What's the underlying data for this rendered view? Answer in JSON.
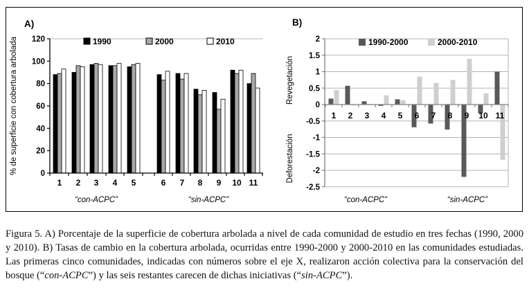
{
  "figure": {
    "caption_segments": [
      {
        "text": "Figura 5. A) Porcentaje de la superficie de cobertura arbolada a nivel de cada comunidad de estudio en tres fechas (1990, 2000 y 2010). B) Tasas de cambio en la cobertura arbolada, ocurridas entre 1990-2000 y 2000-2010 en las comunidades estudiadas. Las primeras cinco comunidades, indicadas con números sobre el eje X, realizaron acción colectiva para la conservación del bosque (“",
        "italic": false
      },
      {
        "text": "con-ACPC",
        "italic": true
      },
      {
        "text": "”) y las seis restantes carecen de dichas iniciativas (“",
        "italic": false
      },
      {
        "text": "sin-ACPC",
        "italic": true
      },
      {
        "text": "”).",
        "italic": false
      }
    ]
  },
  "chart_data": [
    {
      "type": "bar",
      "panel_label": "A)",
      "ylabel": "% de superficie con cobertura arbolada",
      "ylim": [
        0,
        120
      ],
      "yticks": [
        "120",
        "100",
        "80",
        "60",
        "40",
        "20",
        "0"
      ],
      "ytick_values": [
        120,
        100,
        80,
        60,
        40,
        20,
        0
      ],
      "grid": false,
      "legend_position": "top",
      "categories": [
        "1",
        "2",
        "3",
        "4",
        "5",
        "6",
        "7",
        "8",
        "9",
        "10",
        "11"
      ],
      "group_labels": [
        {
          "label": "“con-ACPC”",
          "categories": "1-5"
        },
        {
          "label": "“sin-ACPC”",
          "categories": "6-11"
        }
      ],
      "series": [
        {
          "name": "1990",
          "color": "#000000",
          "values": [
            88,
            90,
            97,
            96,
            95,
            88,
            89,
            75,
            72,
            92,
            80
          ]
        },
        {
          "name": "2000",
          "color": "#a8a8a8",
          "values": [
            89,
            96,
            98,
            96,
            97,
            83,
            84,
            70,
            57,
            89,
            89
          ]
        },
        {
          "name": "2010",
          "color": "#ffffff",
          "values": [
            93,
            95,
            97,
            98,
            98,
            91,
            89,
            74,
            66,
            92,
            76
          ]
        }
      ]
    },
    {
      "type": "bar",
      "panel_label": "B)",
      "ylabel_positive": "Revegetación",
      "ylabel_negative": "Deforestación",
      "ylim": [
        -2.5,
        2
      ],
      "yticks": [
        "2",
        "1.5",
        "1",
        "0.5",
        "0",
        "-0.5",
        "-1",
        "-1.5",
        "-2",
        "-2.5"
      ],
      "ytick_values": [
        2,
        1.5,
        1,
        0.5,
        0,
        -0.5,
        -1,
        -1.5,
        -2,
        -2.5
      ],
      "grid": true,
      "legend_position": "top",
      "categories": [
        "1",
        "2",
        "3",
        "4",
        "5",
        "6",
        "7",
        "8",
        "9",
        "10",
        "11"
      ],
      "group_labels": [
        {
          "label": "“con-ACPC”",
          "categories": "1-5"
        },
        {
          "label": "“sin-ACPC”",
          "categories": "6-11"
        }
      ],
      "series": [
        {
          "name": "1990-2000",
          "color": "#595959",
          "values": [
            0.18,
            0.57,
            0.1,
            -0.04,
            0.16,
            -0.69,
            -0.58,
            -0.76,
            -2.2,
            -0.27,
            1.0
          ]
        },
        {
          "name": "2000-2010",
          "color": "#cfcfcf",
          "values": [
            0.44,
            -0.03,
            -0.02,
            0.28,
            0.13,
            0.85,
            0.66,
            0.75,
            1.39,
            0.34,
            -1.68
          ]
        }
      ]
    }
  ],
  "style_colors": {
    "plot_border": "#b3b3b3",
    "grid_line": "#b3b3b3",
    "axis_b": "#808080",
    "axis_a": "#000000"
  }
}
